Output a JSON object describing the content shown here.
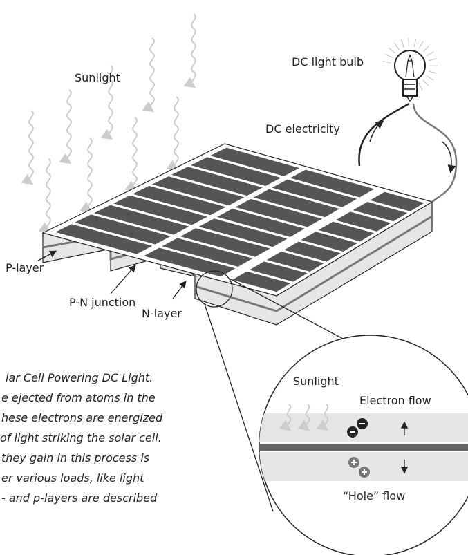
{
  "labels": {
    "sunlight": "Sunlight",
    "bulb": "DC light bulb",
    "electricity": "DC electricity",
    "p_layer": "P-layer",
    "pn_junction": "P-N junction",
    "n_layer": "N-layer"
  },
  "caption": [
    "lar Cell Powering DC Light.",
    "e ejected from atoms in the",
    "hese electrons are energized",
    "of light striking the solar cell.",
    "they gain in this process is",
    "er various loads, like light",
    "- and p-layers are described"
  ],
  "inset": {
    "sunlight": "Sunlight",
    "electron_flow": "Electron flow",
    "hole_flow": "“Hole” flow"
  }
}
